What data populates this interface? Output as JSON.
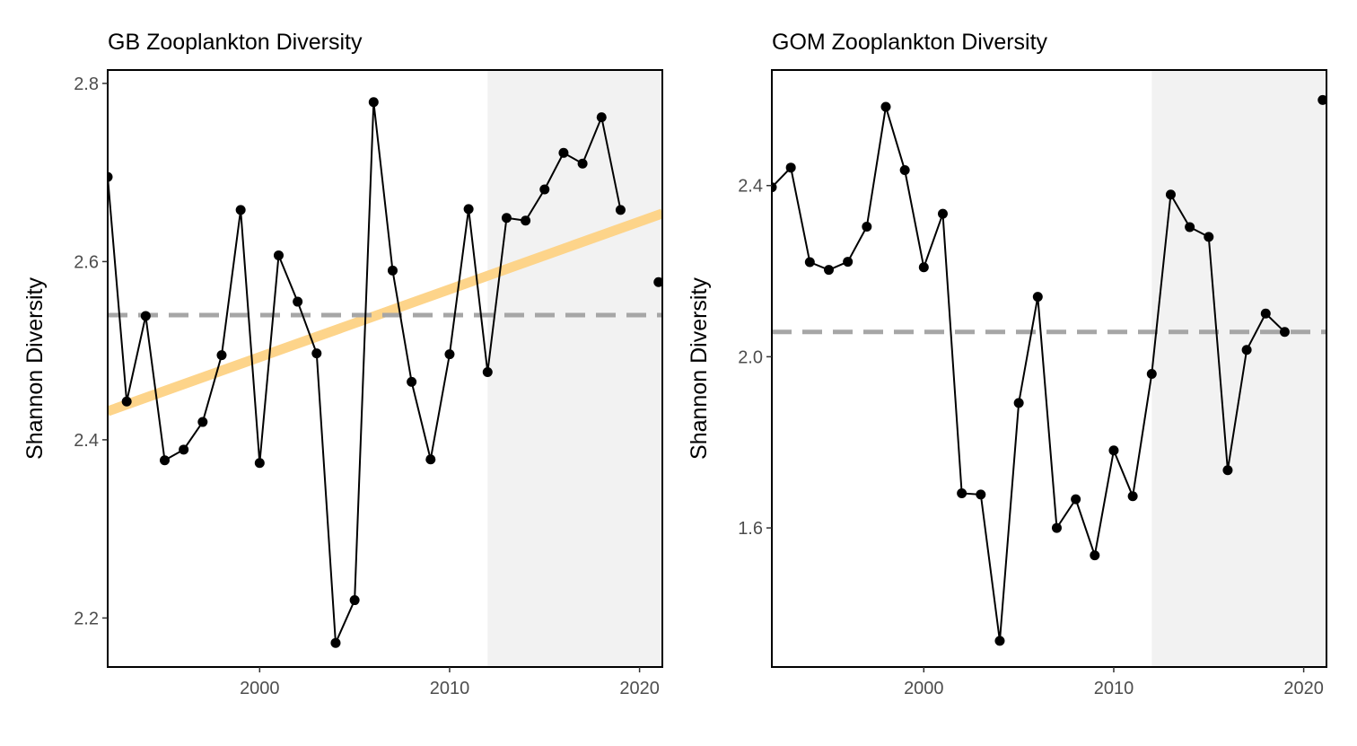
{
  "chart_data": [
    {
      "type": "line",
      "title": "GB Zooplankton Diversity",
      "xlabel": "",
      "ylabel": "Shannon Diversity",
      "xlim": [
        1992,
        2021.2
      ],
      "ylim": [
        2.145,
        2.815
      ],
      "xticks": [
        2000,
        2010,
        2020
      ],
      "yticks": [
        2.2,
        2.4,
        2.6,
        2.8
      ],
      "ytick_labels": [
        "2.2",
        "2.4",
        "2.6",
        "2.8"
      ],
      "grid": false,
      "colors": {
        "series": "#000000",
        "mean": "#a6a6a6",
        "trend": "#fdd48a",
        "shade": "#f2f2f2"
      },
      "shaded_region": {
        "x_start": 2012,
        "x_end": 2021.2
      },
      "mean_line": 2.54,
      "trend_line": {
        "x": [
          1992,
          2021.2
        ],
        "y": [
          2.432,
          2.654
        ]
      },
      "series": [
        {
          "x": [
            1992,
            1993,
            1994,
            1995,
            1996,
            1997,
            1998,
            1999,
            2000,
            2001,
            2002,
            2003,
            2004,
            2005,
            2006,
            2007,
            2008,
            2009,
            2010,
            2011,
            2012,
            2013,
            2014,
            2015,
            2016,
            2017,
            2018,
            2019
          ],
          "y": [
            2.695,
            2.443,
            2.539,
            2.377,
            2.389,
            2.42,
            2.495,
            2.658,
            2.374,
            2.607,
            2.555,
            2.497,
            2.172,
            2.22,
            2.779,
            2.59,
            2.465,
            2.378,
            2.496,
            2.659,
            2.476,
            2.649,
            2.646,
            2.681,
            2.722,
            2.71,
            2.762,
            2.658
          ]
        }
      ],
      "isolated_points": {
        "x": [
          2021
        ],
        "y": [
          2.577
        ]
      }
    },
    {
      "type": "line",
      "title": "GOM Zooplankton Diversity",
      "xlabel": "",
      "ylabel": "Shannon Diversity",
      "xlim": [
        1992,
        2021.2
      ],
      "ylim": [
        1.275,
        2.67
      ],
      "xticks": [
        2000,
        2010,
        2020
      ],
      "yticks": [
        1.6,
        2.0,
        2.4
      ],
      "ytick_labels": [
        "1.6",
        "2.0",
        "2.4"
      ],
      "grid": false,
      "colors": {
        "series": "#000000",
        "mean": "#a6a6a6",
        "shade": "#f2f2f2"
      },
      "shaded_region": {
        "x_start": 2012,
        "x_end": 2021.2
      },
      "mean_line": 2.058,
      "series": [
        {
          "x": [
            1992,
            1993,
            1994,
            1995,
            1996,
            1997,
            1998,
            1999,
            2000,
            2001,
            2002,
            2003,
            2004,
            2005,
            2006,
            2007,
            2008,
            2009,
            2010,
            2011,
            2012,
            2013,
            2014,
            2015,
            2016,
            2017,
            2018,
            2019
          ],
          "y": [
            2.396,
            2.442,
            2.221,
            2.203,
            2.222,
            2.304,
            2.584,
            2.436,
            2.209,
            2.334,
            1.681,
            1.678,
            1.336,
            1.892,
            2.14,
            1.6,
            1.667,
            1.536,
            1.781,
            1.674,
            1.96,
            2.379,
            2.303,
            2.28,
            1.735,
            2.016,
            2.101,
            2.058
          ]
        }
      ],
      "isolated_points": {
        "x": [
          2021
        ],
        "y": [
          2.6
        ]
      }
    }
  ]
}
